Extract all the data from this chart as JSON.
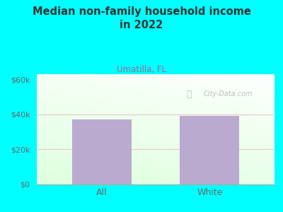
{
  "title": "Median non-family household income\nin 2022",
  "subtitle": "Umatilla, FL",
  "categories": [
    "All",
    "White"
  ],
  "values": [
    37000,
    39000
  ],
  "bar_color": "#bbaad0",
  "background_color": "#00FFFF",
  "title_color": "#333333",
  "subtitle_color": "#996699",
  "ytick_labels": [
    "$0",
    "$20k",
    "$40k",
    "$60k"
  ],
  "ytick_values": [
    0,
    20000,
    40000,
    60000
  ],
  "ylim": [
    0,
    63000
  ],
  "grid_color": "#e8c8c8",
  "tick_color": "#666666",
  "watermark": "City-Data.com"
}
